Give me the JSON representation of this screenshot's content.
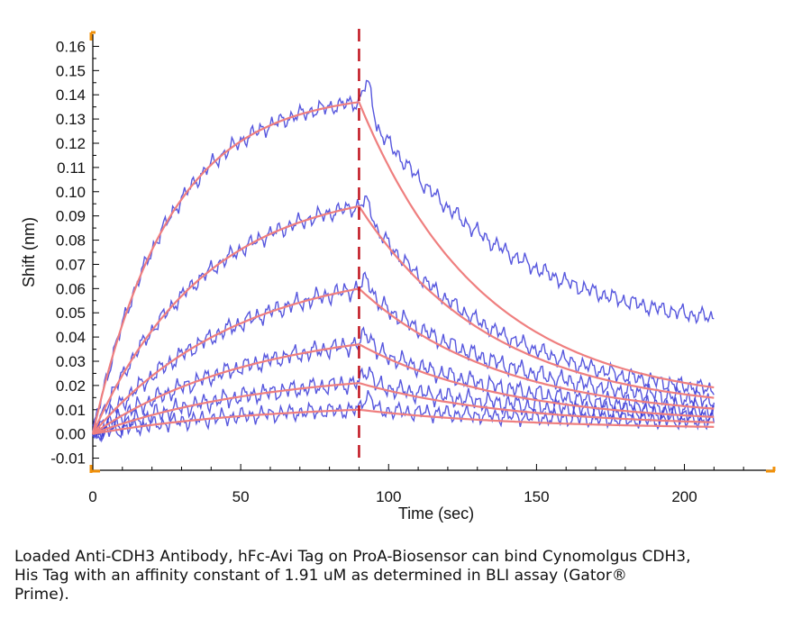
{
  "chart_data": {
    "type": "line",
    "xlabel": "Time (sec)",
    "ylabel": "Shift (nm)",
    "xlim": [
      0,
      230
    ],
    "ylim": [
      -0.015,
      0.165
    ],
    "x_ticks": [
      0,
      50,
      100,
      150,
      200
    ],
    "y_ticks": [
      -0.01,
      0.0,
      0.01,
      0.02,
      0.03,
      0.04,
      0.05,
      0.06,
      0.07,
      0.08,
      0.09,
      0.1,
      0.11,
      0.12,
      0.13,
      0.14,
      0.15,
      0.16
    ],
    "y_tick_labels": [
      "-0.01",
      "0.00",
      "0.01",
      "0.02",
      "0.03",
      "0.04",
      "0.05",
      "0.06",
      "0.07",
      "0.08",
      "0.09",
      "0.10",
      "0.11",
      "0.12",
      "0.13",
      "0.14",
      "0.15",
      "0.16"
    ],
    "grid": false,
    "legend": "none",
    "dissociation_start_x": 90,
    "x_end": 210,
    "colors": {
      "measured": "#3a3ad8",
      "fit": "#ef7f7f",
      "marker": "#c0141e",
      "axis": "#000000",
      "axis_end_marks": "#f0900a"
    },
    "curves": [
      {
        "plateau": 0.137,
        "assoc_half": 18,
        "diss_end": 0.012,
        "diss_tau": 42,
        "noise": 0.004,
        "residual": 0.029
      },
      {
        "plateau": 0.094,
        "assoc_half": 26,
        "diss_end": 0.009,
        "diss_tau": 45,
        "noise": 0.004,
        "residual": 0.006
      },
      {
        "plateau": 0.06,
        "assoc_half": 34,
        "diss_end": 0.006,
        "diss_tau": 48,
        "noise": 0.0045,
        "residual": 0.006
      },
      {
        "plateau": 0.037,
        "assoc_half": 38,
        "diss_end": 0.004,
        "diss_tau": 50,
        "noise": 0.0045,
        "residual": 0.005
      },
      {
        "plateau": 0.021,
        "assoc_half": 40,
        "diss_end": 0.003,
        "diss_tau": 52,
        "noise": 0.0045,
        "residual": 0.005
      },
      {
        "plateau": 0.01,
        "assoc_half": 40,
        "diss_end": 0.002,
        "diss_tau": 55,
        "noise": 0.004,
        "residual": 0.004
      }
    ]
  },
  "caption": "Loaded Anti-CDH3 Antibody, hFc-Avi Tag on ProA-Biosensor can bind Cynomolgus CDH3,\nHis Tag with an affinity constant of 1.91 uM as determined in BLI assay (Gator®\nPrime)."
}
